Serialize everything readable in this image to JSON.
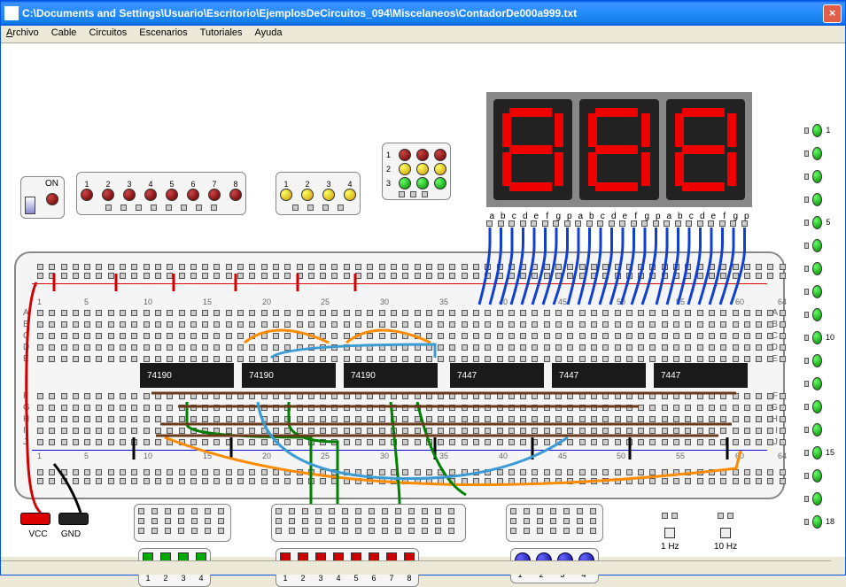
{
  "window": {
    "title": "C:\\Documents and Settings\\Usuario\\Escritorio\\EjemplosDeCircuitos_094\\Miscelaneos\\ContadorDe000a999.txt"
  },
  "menu": {
    "archivo": "Archivo",
    "cable": "Cable",
    "circuitos": "Circuitos",
    "escenarios": "Escenarios",
    "tutoriales": "Tutoriales",
    "ayuda": "Ayuda"
  },
  "power": {
    "label": "ON"
  },
  "leds_red8": {
    "labels": [
      "1",
      "2",
      "3",
      "4",
      "5",
      "6",
      "7",
      "8"
    ]
  },
  "leds_yellow4": {
    "labels": [
      "1",
      "2",
      "3",
      "4"
    ]
  },
  "leds_3x3": {
    "rows": [
      "1",
      "2",
      "3"
    ]
  },
  "seg_labels": [
    "a",
    "b",
    "c",
    "d",
    "e",
    "f",
    "g",
    "p",
    "a",
    "b",
    "c",
    "d",
    "e",
    "f",
    "g",
    "p",
    "a",
    "b",
    "c",
    "d",
    "e",
    "f",
    "g",
    "p"
  ],
  "vleds": {
    "labels": [
      "1",
      "",
      "",
      "",
      "5",
      "",
      "",
      "",
      "",
      "10",
      "",
      "",
      "",
      "",
      "15",
      "",
      "",
      "18"
    ]
  },
  "chips": {
    "c1": "74190",
    "c2": "74190",
    "c3": "74190",
    "c4": "7447",
    "c5": "7447",
    "c6": "7447"
  },
  "rows": {
    "a": "A",
    "b": "B",
    "c": "C",
    "d": "D",
    "e": "E",
    "f": "F",
    "g": "G",
    "h": "H",
    "i": "I",
    "j": "J"
  },
  "rail_nums": [
    "1",
    "5",
    "10",
    "15",
    "20",
    "25",
    "30",
    "35",
    "40",
    "45",
    "50",
    "55",
    "60",
    "64"
  ],
  "vcc": "VCC",
  "gnd": "GND",
  "dip_green": {
    "labels": [
      "1",
      "2",
      "3",
      "4"
    ]
  },
  "dip_red": {
    "labels": [
      "1",
      "2",
      "3",
      "4",
      "5",
      "6",
      "7",
      "8"
    ]
  },
  "bluebtns": {
    "labels": [
      "1",
      "2",
      "3",
      "4"
    ]
  },
  "osc1": "1 Hz",
  "osc10": "10 Hz"
}
